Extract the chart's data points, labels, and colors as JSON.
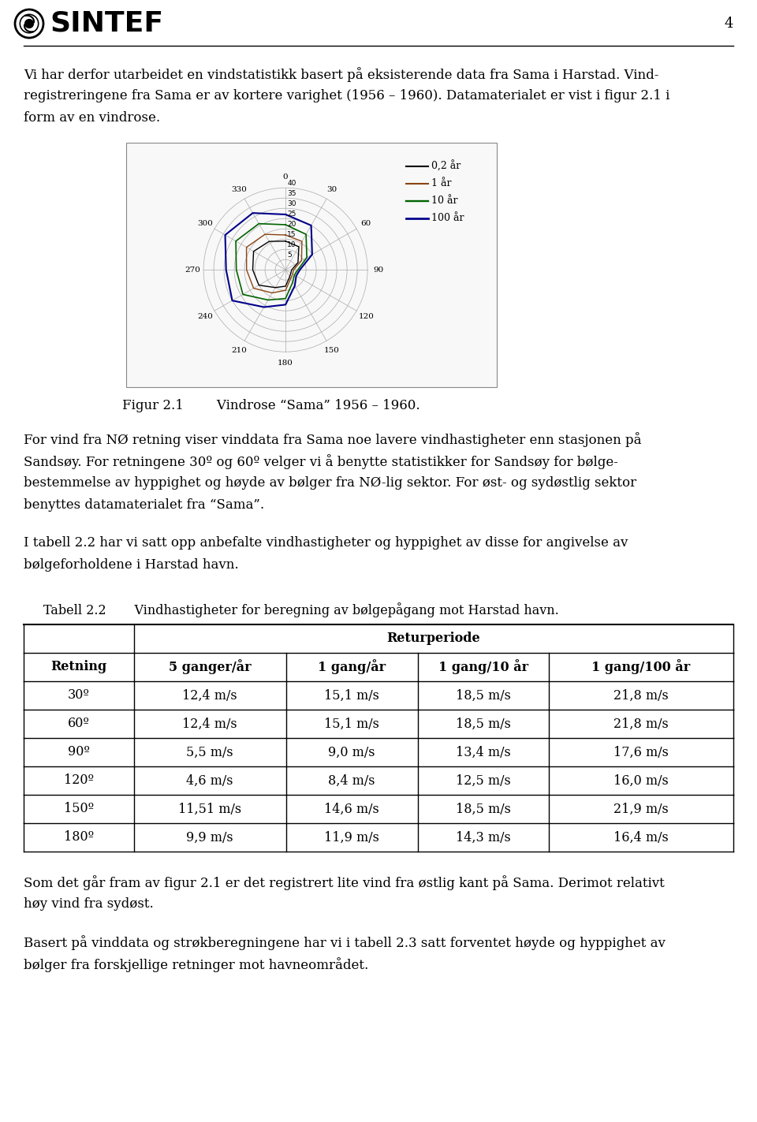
{
  "page_number": "4",
  "logo_text": "SINTEF",
  "para1_lines": [
    "Vi har derfor utarbeidet en vindstatistikk basert på eksisterende data fra Sama i Harstad. Vind-",
    "registreringene fra Sama er av kortere varighet (1956 – 1960). Datamaterialet er vist i figur 2.1 i",
    "form av en vindrose."
  ],
  "fig_caption": "Figur 2.1        Vindrose “Sama” 1956 – 1960.",
  "para2_lines": [
    "For vind fra NØ retning viser vinddata fra Sama noe lavere vindhastigheter enn stasjonen på",
    "Sandsøy. For retningene 30º og 60º velger vi å benytte statistikker for Sandsøy for bølge-",
    "bestemmelse av hyppighet og høyde av bølger fra NØ-lig sektor. For øst- og sydøstlig sektor",
    "benyttes datamaterialet fra “Sama”."
  ],
  "para3_lines": [
    "I tabell 2.2 har vi satt opp anbefalte vindhastigheter og hyppighet av disse for angivelse av",
    "bølgeforholdene i Harstad havn."
  ],
  "table_caption": "Tabell 2.2       Vindhastigheter for beregning av bølgepågang mot Harstad havn.",
  "table_header_main": "Returperiode",
  "table_col0_header": "Retning",
  "table_col1_header": "5 ganger/år",
  "table_col2_header": "1 gang/år",
  "table_col3_header": "1 gang/10 år",
  "table_col4_header": "1 gang/100 år",
  "table_rows": [
    [
      "30º",
      "12,4 m/s",
      "15,1 m/s",
      "18,5 m/s",
      "21,8 m/s"
    ],
    [
      "60º",
      "12,4 m/s",
      "15,1 m/s",
      "18,5 m/s",
      "21,8 m/s"
    ],
    [
      "90º",
      "5,5 m/s",
      "9,0 m/s",
      "13,4 m/s",
      "17,6 m/s"
    ],
    [
      "120º",
      "4,6 m/s",
      "8,4 m/s",
      "12,5 m/s",
      "16,0 m/s"
    ],
    [
      "150º",
      "11,51 m/s",
      "14,6 m/s",
      "18,5 m/s",
      "21,9 m/s"
    ],
    [
      "180º",
      "9,9 m/s",
      "11,9 m/s",
      "14,3 m/s",
      "16,4 m/s"
    ]
  ],
  "para4_lines": [
    "Som det går fram av figur 2.1 er det registrert lite vind fra østlig kant på Sama. Derimot relativt",
    "høy vind fra sydøst."
  ],
  "para5_lines": [
    "Basert på vinddata og strøkberegningene har vi i tabell 2.3 satt forventet høyde og hyppighet av",
    "bølger fra forskjellige retninger mot havneområdet."
  ],
  "bg_color": "#ffffff",
  "text_color": "#000000",
  "rose_directions": [
    0,
    30,
    60,
    90,
    120,
    150,
    180,
    210,
    240,
    270,
    300,
    330
  ],
  "rose_dir_labels": [
    "0",
    "30",
    "60",
    "90",
    "120",
    "150",
    "180",
    "210",
    "240",
    "270",
    "300",
    "330"
  ],
  "rose_grid_radii": [
    5,
    10,
    15,
    20,
    25,
    30,
    35,
    40
  ],
  "rose_grid_labels": [
    "5",
    "10",
    "15",
    "20",
    "25",
    "30",
    "35",
    "40"
  ],
  "rose_data": [
    [
      14,
      13,
      7,
      3,
      3,
      4,
      8,
      10,
      15,
      16,
      18,
      16
    ],
    [
      17,
      16,
      9,
      4,
      4,
      5,
      10,
      13,
      18,
      19,
      22,
      20
    ],
    [
      22,
      20,
      12,
      6,
      5,
      7,
      14,
      17,
      24,
      24,
      28,
      26
    ],
    [
      27,
      25,
      15,
      7,
      6,
      9,
      17,
      21,
      30,
      29,
      34,
      32
    ]
  ],
  "rose_colors": [
    "#000000",
    "#8B4513",
    "#006400",
    "#00008B"
  ],
  "rose_labels": [
    "0,2 år",
    "1 år",
    "10 år",
    "100 år"
  ],
  "rose_linewidths": [
    1.0,
    1.0,
    1.2,
    1.5
  ]
}
